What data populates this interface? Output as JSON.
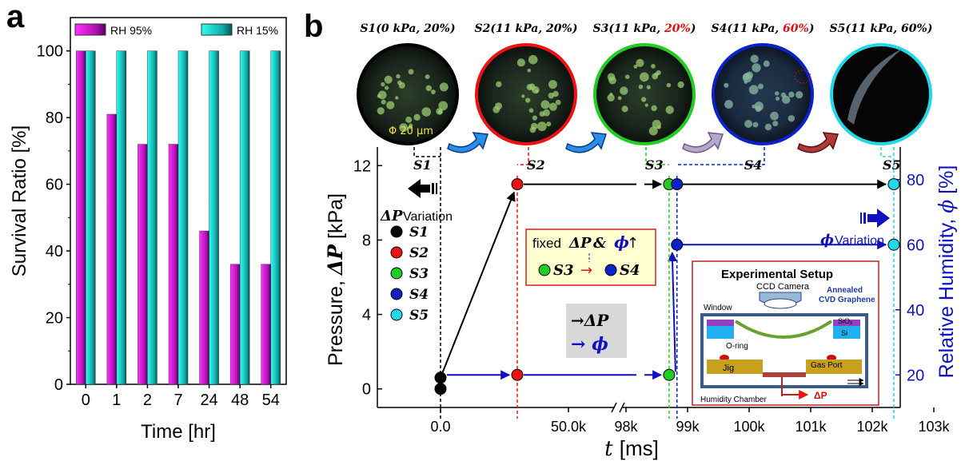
{
  "panels": {
    "a": "a",
    "b": "b"
  },
  "chart_data": [
    {
      "type": "bar",
      "categories": [
        "0",
        "1",
        "2",
        "7",
        "24",
        "48",
        "54"
      ],
      "series": [
        {
          "name": "RH 95%",
          "values": [
            100,
            81,
            72,
            72,
            46,
            36,
            36
          ]
        },
        {
          "name": "RH 15%",
          "values": [
            100,
            100,
            100,
            100,
            100,
            100,
            100
          ]
        }
      ],
      "xlabel": "Time [hr]",
      "ylabel": "Survival Ratio [%]",
      "ylim": [
        0,
        110
      ],
      "yticks": [
        "0",
        "20",
        "40",
        "60",
        "80",
        "100"
      ],
      "colors": {
        "RH 95%": "#e020e0",
        "RH 15%": "#20d8d0"
      },
      "legend_position": "top"
    },
    {
      "type": "line",
      "xlabel_italic": "t",
      "xlabel_unit": "[ms]",
      "ylabel_left_text": "Pressure, ",
      "ylabel_left_sym": "ΔP",
      "ylabel_left_unit": " [kPa]",
      "ylabel_right_text": "Relative Humidity, ",
      "ylabel_right_sym": "ϕ",
      "ylabel_right_unit": " [%]",
      "xticks": [
        "0.0",
        "50.0k",
        "98k",
        "99k",
        "100k",
        "101k",
        "102k",
        "103k"
      ],
      "yticks_left": [
        "0",
        "4",
        "8",
        "12"
      ],
      "yticks_right": [
        "20",
        "40",
        "60",
        "80"
      ],
      "ylim_left": [
        -1,
        13
      ],
      "ylim_right": [
        10,
        90
      ],
      "pressure_points": [
        {
          "x": 0,
          "y": 0,
          "state": "S1"
        },
        {
          "x": 0,
          "y": 0.6,
          "state": "S1"
        },
        {
          "x": 30000,
          "y": 11,
          "state": "S2"
        },
        {
          "x": 98700,
          "y": 11,
          "state": "S3"
        },
        {
          "x": 98750,
          "y": 11,
          "state": "S4"
        },
        {
          "x": 102350,
          "y": 11,
          "state": "S5"
        }
      ],
      "humidity_points": [
        {
          "x": 0,
          "y": 20,
          "state": "S1"
        },
        {
          "x": 30000,
          "y": 20,
          "state": "S2"
        },
        {
          "x": 98700,
          "y": 20,
          "state": "S3"
        },
        {
          "x": 98750,
          "y": 60,
          "state": "S4"
        },
        {
          "x": 102350,
          "y": 60,
          "state": "S5"
        }
      ],
      "state_colors": {
        "S1": "#000000",
        "S2": "#ee1111",
        "S3": "#22cc22",
        "S4": "#0a22c8",
        "S5": "#22d8e8"
      },
      "states": [
        {
          "id": "S1",
          "pre": "(0 kPa, 20%)",
          "p": "",
          "h": ""
        },
        {
          "id": "S2",
          "pre": "(11 kPa, 20%)",
          "p": "",
          "h": ""
        },
        {
          "id": "S3",
          "pre": "(11 kPa, ",
          "p": "20%",
          "h": ")"
        },
        {
          "id": "S4",
          "pre": "(11 kPa, ",
          "p": "60%",
          "h": ")"
        },
        {
          "id": "S5",
          "pre": "(11 kPa, 60%)",
          "p": "",
          "h": ""
        }
      ],
      "scale_label": "Φ 20 μm",
      "legend_dp_sym": "ΔP",
      "legend_dp_word": "Variation",
      "legend_items": [
        "S1",
        "S2",
        "S3",
        "S4",
        "S5"
      ],
      "phi_variation_sym": "ϕ",
      "phi_variation_word": "Variation",
      "fixed_box": {
        "word": "fixed",
        "dp": "ΔP",
        "amp": " & ",
        "phi": "ϕ",
        "arrow": "↑",
        "s3": "S3",
        "s4": "S4",
        "to": "→"
      },
      "key_box": {
        "dp": "→ΔP",
        "phi": "→ ϕ"
      },
      "setup": {
        "title": "Experimental Setup",
        "camera": "CCD Camera",
        "graphene1": "Annealed",
        "graphene2": "CVD Graphene",
        "window": "Window",
        "sio2": "SiO₂",
        "si": "Si",
        "oring": "O-ring",
        "jig": "Jig",
        "gasport": "Gas Port",
        "chamber": "Humidity Chamber",
        "dp": "ΔP"
      }
    }
  ]
}
